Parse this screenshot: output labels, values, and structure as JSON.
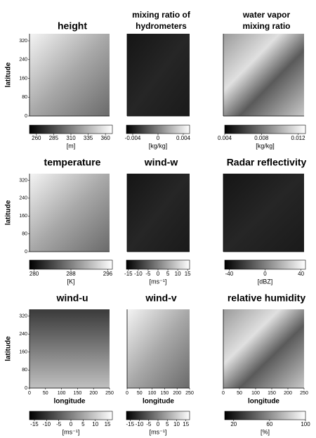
{
  "chart_data": [
    {
      "type": "image",
      "title": [
        "height"
      ],
      "ylabel": "latitude",
      "ylim": [
        0,
        350
      ],
      "yticks": [
        0,
        80,
        160,
        240,
        320
      ],
      "clim": [
        250,
        370
      ],
      "cticks": [
        260,
        285,
        310,
        335,
        360
      ],
      "unit": "[m]"
    },
    {
      "type": "image",
      "title": [
        "mixing ratio of",
        "hydrometers"
      ],
      "clim": [
        -0.005,
        0.005
      ],
      "cticks": [
        -0.004,
        0,
        0.004
      ],
      "unit": "[kg/kg]"
    },
    {
      "type": "image",
      "title": [
        "water vapor",
        "mixing ratio"
      ],
      "clim": [
        0.004,
        0.0128
      ],
      "cticks": [
        0.004,
        0.008,
        0.012
      ],
      "unit": "[kg/kg]"
    },
    {
      "type": "image",
      "title": [
        "temperature"
      ],
      "ylabel": "latitude",
      "ylim": [
        0,
        350
      ],
      "yticks": [
        0,
        80,
        160,
        240,
        320
      ],
      "clim": [
        279,
        297
      ],
      "cticks": [
        280,
        288,
        296
      ],
      "unit": "[K]"
    },
    {
      "type": "image",
      "title": [
        "wind-w"
      ],
      "clim": [
        -16,
        16
      ],
      "cticks": [
        -15,
        -10,
        -5,
        0,
        5,
        10,
        15
      ],
      "unit": "[ms⁻¹]"
    },
    {
      "type": "image",
      "title": [
        "Radar reflectivity"
      ],
      "clim": [
        -45,
        45
      ],
      "cticks": [
        -40,
        0,
        40
      ],
      "unit": "[dBZ]"
    },
    {
      "type": "image",
      "title": [
        "wind-u"
      ],
      "ylabel": "latitude",
      "ylim": [
        0,
        350
      ],
      "yticks": [
        0,
        80,
        160,
        240,
        320
      ],
      "xlabel": "longitude",
      "xlim": [
        0,
        250
      ],
      "xticks": [
        0,
        50,
        100,
        150,
        200,
        250
      ],
      "clim": [
        -17,
        17
      ],
      "cticks": [
        -15,
        -10,
        -5,
        0,
        5,
        10,
        15
      ],
      "unit": "[ms⁻¹]"
    },
    {
      "type": "image",
      "title": [
        "wind-v"
      ],
      "xlabel": "longitude",
      "xlim": [
        0,
        250
      ],
      "xticks": [
        0,
        50,
        100,
        150,
        200,
        250
      ],
      "clim": [
        -17,
        17
      ],
      "cticks": [
        -15,
        -10,
        -5,
        0,
        5,
        10,
        15
      ],
      "unit": "[ms⁻¹]"
    },
    {
      "type": "image",
      "title": [
        "relative humidity"
      ],
      "xlabel": "longitude",
      "xlim": [
        0,
        250
      ],
      "xticks": [
        0,
        50,
        100,
        150,
        200,
        250
      ],
      "clim": [
        10,
        100
      ],
      "cticks": [
        20,
        60,
        100
      ],
      "unit": "[%]"
    }
  ]
}
